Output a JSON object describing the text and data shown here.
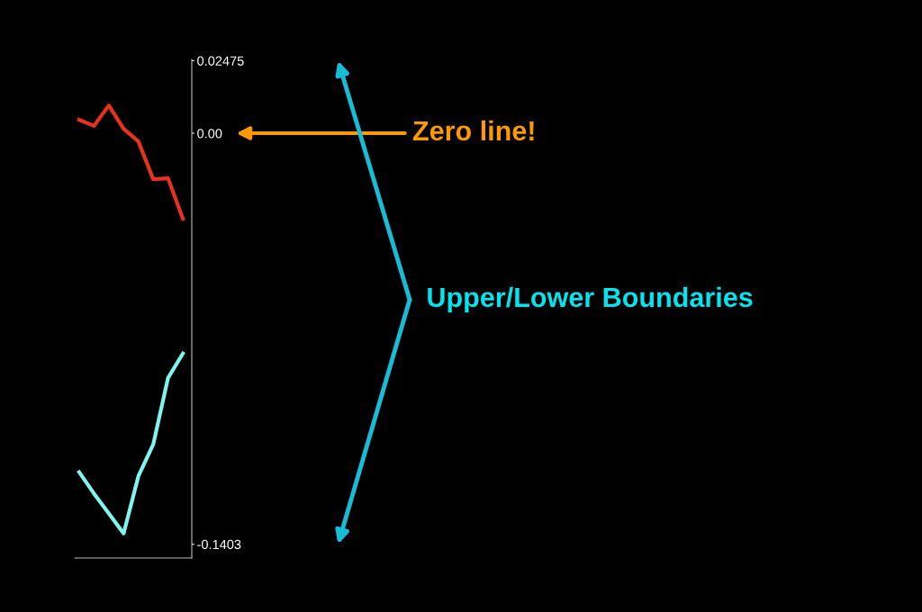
{
  "chart_data": {
    "type": "line",
    "categories": [
      null,
      null,
      null,
      null,
      null,
      null,
      null,
      null
    ],
    "series": [
      {
        "color": "#e8321e",
        "values": [
          0.0046,
          0.0025,
          0.0095,
          0.0015,
          -0.0028,
          -0.0157,
          -0.0154,
          -0.0292
        ]
      },
      {
        "color": "#7ff5f0",
        "values": [
          -0.1157,
          -0.123,
          -0.1298,
          -0.1366,
          -0.117,
          -0.1062,
          -0.0835,
          -0.0752
        ]
      }
    ],
    "ylim": [
      -0.145,
      0.0252
    ],
    "yticks": [
      0.02475,
      {
        "value": 0.0,
        "label": "0.00"
      },
      -0.1403
    ],
    "annotations": [
      "Zero line!",
      "Upper/Lower Boundaries"
    ],
    "grid": false,
    "legend": false,
    "marker": "none",
    "line_style": "solid"
  }
}
